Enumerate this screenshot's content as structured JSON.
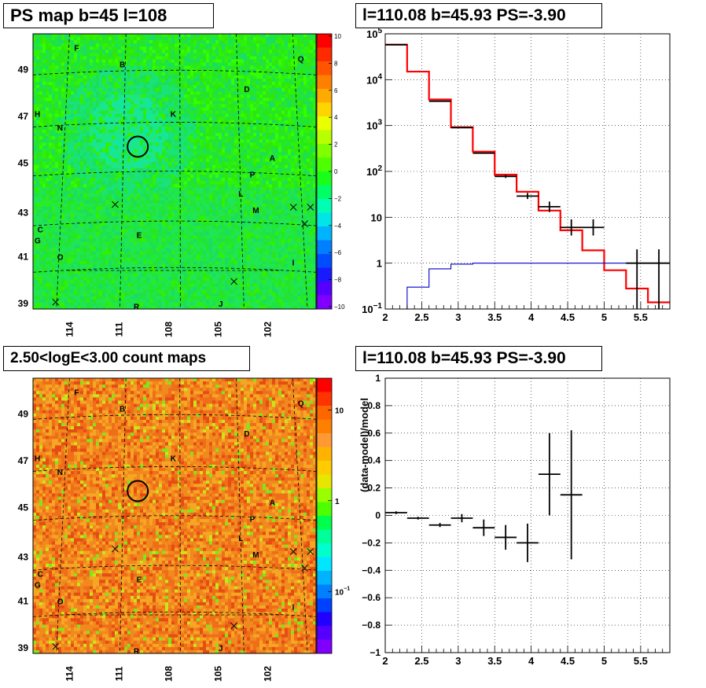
{
  "panels": {
    "ps_map_title": "PS map b=45 l=108",
    "spectrum_title": "l=110.08 b=45.93 PS=-3.90",
    "count_map_title": "2.50<logE<3.00 count maps",
    "residual_title": "l=110.08 b=45.93 PS=-3.90"
  },
  "colors": {
    "map_green": "#2fe60a",
    "model_red": "#ff0000",
    "background_blue": "#0000cc",
    "data_black": "#000000",
    "count_orange": "#f08a1e"
  },
  "chart_data": [
    {
      "type": "heatmap",
      "title": "PS map b=45 l=108",
      "x_ticks": [
        "114",
        "111",
        "108",
        "105",
        "102"
      ],
      "y_ticks": [
        "49",
        "47",
        "45",
        "43",
        "41",
        "39"
      ],
      "colorbar_ticks": [
        "10",
        "8",
        "6",
        "4",
        "2",
        "0",
        "−2",
        "−4",
        "−6",
        "−8",
        "−10"
      ],
      "source_letters": [
        "F",
        "B",
        "Q",
        "D",
        "H",
        "N",
        "K",
        "A",
        "P",
        "L",
        "M",
        "C",
        "G",
        "E",
        "O",
        "I",
        "R",
        "J"
      ],
      "markers": [
        {
          "l": 110.08,
          "b": 45.93,
          "shape": "circle"
        }
      ]
    },
    {
      "type": "line",
      "title": "l=110.08 b=45.93 PS=-3.90",
      "xlim": [
        2,
        5.9
      ],
      "ylim": [
        0.1,
        100000
      ],
      "yscale": "log",
      "x_ticks": [
        "2",
        "2.5",
        "3",
        "3.5",
        "4",
        "4.5",
        "5",
        "5.5"
      ],
      "y_ticks": [
        {
          "base": "10",
          "exp": "5"
        },
        {
          "base": "10",
          "exp": "4"
        },
        {
          "base": "10",
          "exp": "3"
        },
        {
          "base": "10",
          "exp": "2"
        },
        {
          "base": "10",
          "exp": ""
        },
        {
          "base": "1",
          "exp": ""
        },
        {
          "base": "10",
          "exp": "−1"
        }
      ],
      "bin_edges": [
        2.0,
        2.3,
        2.6,
        2.9,
        3.2,
        3.5,
        3.8,
        4.1,
        4.4,
        4.7,
        5.0,
        5.3,
        5.6,
        5.9
      ],
      "series": [
        {
          "values": [
            58000,
            15000,
            3700,
            920,
            270,
            85,
            36,
            14,
            5.2,
            1.9,
            0.7,
            0.28,
            0.14
          ]
        },
        {
          "values": [
            0.1,
            0.3,
            0.75,
            0.95,
            1.0,
            1.0,
            1.0,
            1.0,
            1.0,
            1.0,
            1.0,
            1.0,
            1.0
          ]
        }
      ],
      "data_points": [
        {
          "x": 2.15,
          "y": 58000,
          "xerr": 0.15,
          "ylo": 58000,
          "yhi": 58000
        },
        {
          "x": 2.75,
          "y": 3400,
          "xerr": 0.15,
          "ylo": 3400,
          "yhi": 3400
        },
        {
          "x": 3.05,
          "y": 900,
          "xerr": 0.15,
          "ylo": 900,
          "yhi": 900
        },
        {
          "x": 3.35,
          "y": 250,
          "xerr": 0.15,
          "ylo": 250,
          "yhi": 250
        },
        {
          "x": 3.65,
          "y": 78,
          "xerr": 0.15,
          "ylo": 72,
          "yhi": 84
        },
        {
          "x": 3.95,
          "y": 29,
          "xerr": 0.15,
          "ylo": 25,
          "yhi": 34
        },
        {
          "x": 4.25,
          "y": 17,
          "xerr": 0.15,
          "ylo": 13,
          "yhi": 22
        },
        {
          "x": 4.55,
          "y": 6,
          "xerr": 0.15,
          "ylo": 4,
          "yhi": 9
        },
        {
          "x": 4.85,
          "y": 6,
          "xerr": 0.15,
          "ylo": 4,
          "yhi": 9
        },
        {
          "x": 5.45,
          "y": 1,
          "xerr": 0.15,
          "ylo": 0.1,
          "yhi": 2
        },
        {
          "x": 5.75,
          "y": 1,
          "xerr": 0.15,
          "ylo": 0.1,
          "yhi": 2
        }
      ]
    },
    {
      "type": "heatmap",
      "title": "2.50<logE<3.00 count maps",
      "x_ticks": [
        "114",
        "111",
        "108",
        "105",
        "102"
      ],
      "y_ticks": [
        "49",
        "47",
        "45",
        "43",
        "41",
        "39"
      ],
      "colorbar_ticks": [
        {
          "base": "10",
          "exp": ""
        },
        {
          "base": "1",
          "exp": ""
        },
        {
          "base": "10",
          "exp": "−1"
        }
      ],
      "colorbar_scale": "log",
      "source_letters": [
        "F",
        "B",
        "Q",
        "D",
        "H",
        "N",
        "K",
        "A",
        "P",
        "L",
        "M",
        "C",
        "G",
        "E",
        "O",
        "I",
        "R",
        "J"
      ],
      "markers": [
        {
          "l": 110.08,
          "b": 45.93,
          "shape": "circle"
        }
      ]
    },
    {
      "type": "scatter",
      "title": "l=110.08 b=45.93 PS=-3.90",
      "ylabel": "(data-model)/model",
      "xlim": [
        2,
        5.9
      ],
      "ylim": [
        -1,
        1
      ],
      "x_ticks": [
        "2",
        "2.5",
        "3",
        "3.5",
        "4",
        "4.5",
        "5",
        "5.5"
      ],
      "y_ticks": [
        "1",
        "0.8",
        "0.6",
        "0.4",
        "0.2",
        "0",
        "−0.2",
        "−0.4",
        "−0.6",
        "−0.8",
        "−1"
      ],
      "data_points": [
        {
          "x": 2.15,
          "y": 0.02,
          "xerr": 0.15,
          "yerr": 0.01
        },
        {
          "x": 2.45,
          "y": -0.02,
          "xerr": 0.15,
          "yerr": 0.01
        },
        {
          "x": 2.75,
          "y": -0.07,
          "xerr": 0.15,
          "yerr": 0.015
        },
        {
          "x": 3.05,
          "y": -0.02,
          "xerr": 0.15,
          "yerr": 0.03
        },
        {
          "x": 3.35,
          "y": -0.09,
          "xerr": 0.15,
          "yerr": 0.06
        },
        {
          "x": 3.65,
          "y": -0.16,
          "xerr": 0.15,
          "yerr": 0.09
        },
        {
          "x": 3.95,
          "y": -0.2,
          "xerr": 0.15,
          "yerr": 0.14
        },
        {
          "x": 4.25,
          "y": 0.3,
          "xerr": 0.15,
          "yerr": 0.3
        },
        {
          "x": 4.55,
          "y": 0.15,
          "xerr": 0.15,
          "yerr": 0.47
        }
      ]
    }
  ]
}
